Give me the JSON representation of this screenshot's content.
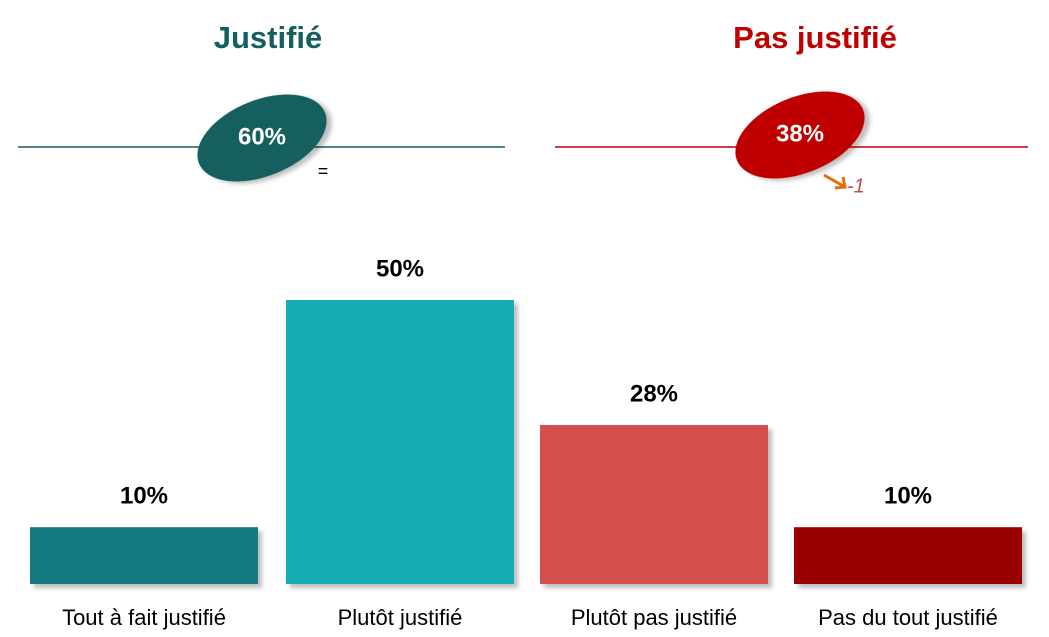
{
  "chart_data": {
    "type": "bar",
    "categories": [
      "Tout à fait justifié",
      "Plutôt justifié",
      "Plutôt pas justifié",
      "Pas du tout justifié"
    ],
    "values": [
      10,
      50,
      28,
      10
    ],
    "value_labels": [
      "10%",
      "50%",
      "28%",
      "10%"
    ],
    "colors": [
      "#147a82",
      "#14adb5",
      "#d64f50",
      "#990000"
    ],
    "summaries": [
      {
        "title": "Justifié",
        "value": 60,
        "value_label": "60%",
        "change": "=",
        "color": "#135e5e"
      },
      {
        "title": "Pas justifié",
        "value": 38,
        "value_label": "38%",
        "change": "-1",
        "color": "#c00000"
      }
    ]
  }
}
